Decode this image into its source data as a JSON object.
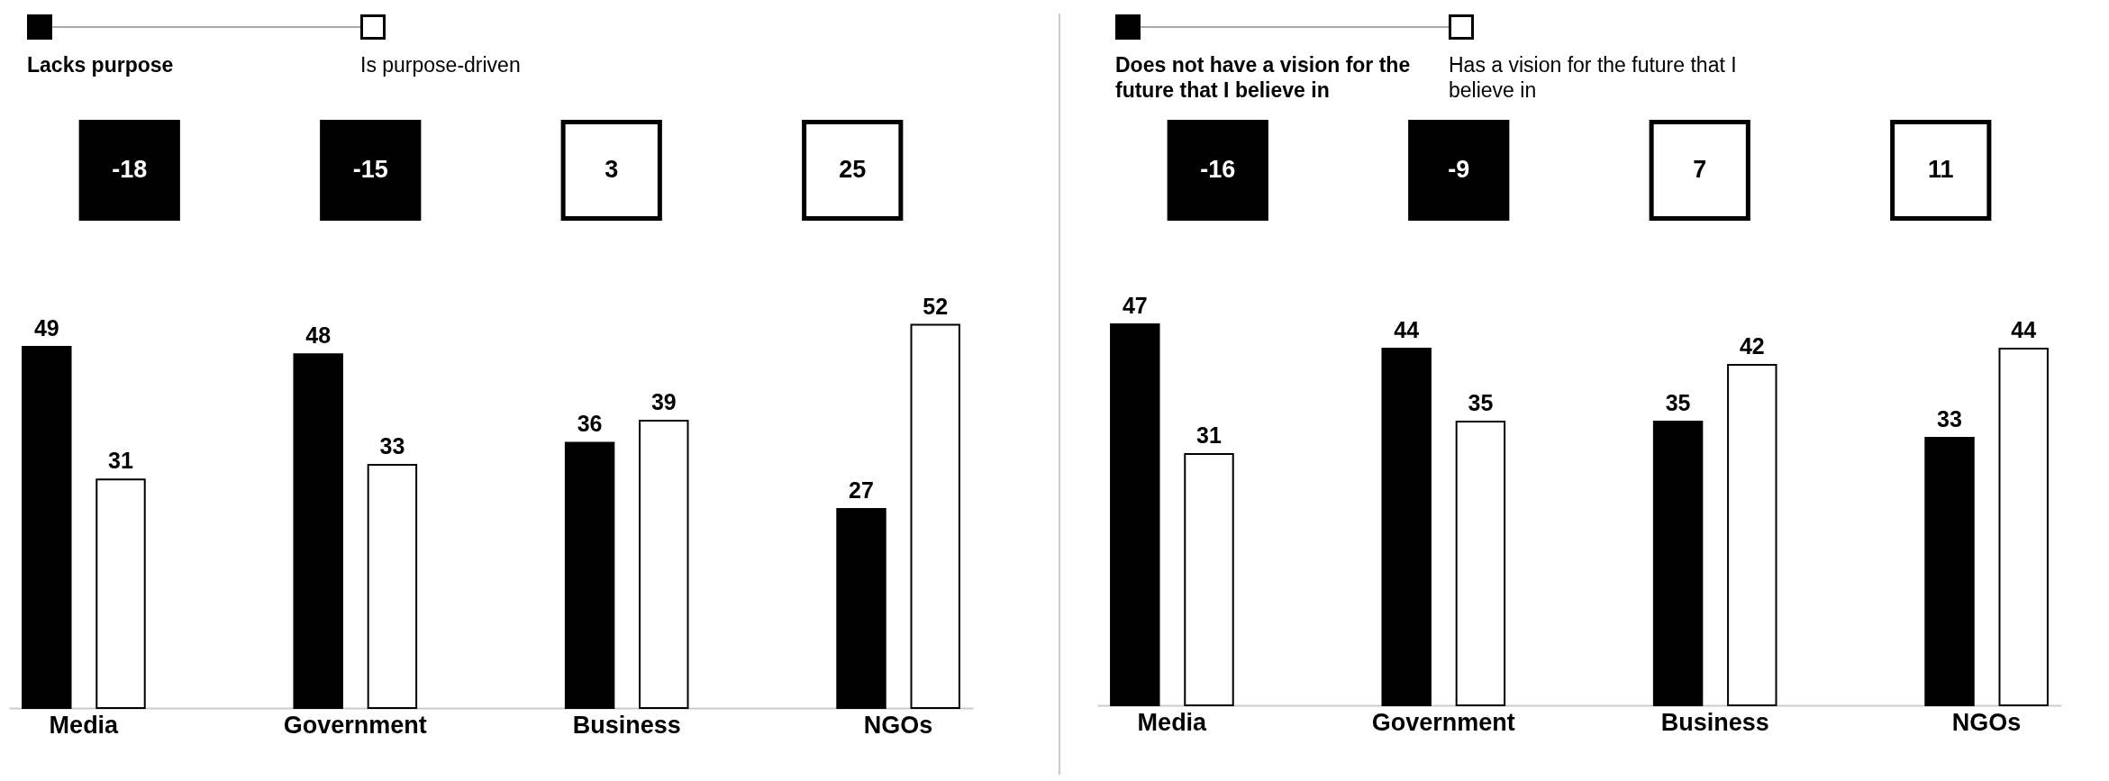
{
  "chart_data": [
    {
      "type": "bar",
      "categories": [
        "Media",
        "Government",
        "Business",
        "NGOs"
      ],
      "series": [
        {
          "name": "Lacks purpose",
          "color": "#000000",
          "values": [
            49,
            48,
            36,
            27
          ]
        },
        {
          "name": "Is purpose-driven",
          "color": "#ffffff",
          "values": [
            31,
            33,
            39,
            52
          ]
        }
      ],
      "annotations": [
        "-18",
        "-15",
        "3",
        "25"
      ],
      "data_labels": true,
      "legend": "top left",
      "grid": false
    },
    {
      "type": "bar",
      "categories": [
        "Media",
        "Government",
        "Business",
        "NGOs"
      ],
      "series": [
        {
          "name": "Does not have a vision for the future that I believe in",
          "color": "#000000",
          "values": [
            47,
            44,
            35,
            33
          ]
        },
        {
          "name": "Has a vision for the future that I believe in",
          "color": "#ffffff",
          "values": [
            31,
            35,
            42,
            44
          ]
        }
      ],
      "annotations": [
        "-16",
        "-9",
        "7",
        "11"
      ],
      "data_labels": true,
      "legend": "top left",
      "grid": false
    }
  ]
}
